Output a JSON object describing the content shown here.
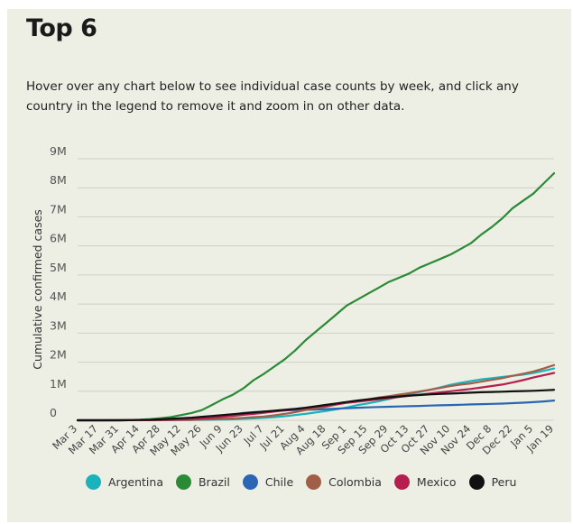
{
  "page": {
    "title": "Top 6",
    "intro": "Hover over any chart below to see individual case counts by week, and click any country in the legend to remove it and zoom in on other data.",
    "background": "#edeee4"
  },
  "chart_data": {
    "type": "line",
    "title": "",
    "xlabel": "",
    "ylabel": "Cumulative confirmed cases",
    "ylim": [
      0,
      9000000
    ],
    "y_ticks": [
      0,
      1000000,
      2000000,
      3000000,
      4000000,
      5000000,
      6000000,
      7000000,
      8000000,
      9000000
    ],
    "y_tick_labels": [
      "0",
      "1M",
      "2M",
      "3M",
      "4M",
      "5M",
      "6M",
      "7M",
      "8M",
      "9M"
    ],
    "x": [
      "Mar 3",
      "Mar 10",
      "Mar 17",
      "Mar 24",
      "Mar 31",
      "Apr 7",
      "Apr 14",
      "Apr 21",
      "Apr 28",
      "May 5",
      "May 12",
      "May 19",
      "May 26",
      "Jun 2",
      "Jun 9",
      "Jun 16",
      "Jun 23",
      "Jun 30",
      "Jul 7",
      "Jul 14",
      "Jul 21",
      "Jul 28",
      "Aug 4",
      "Aug 11",
      "Aug 18",
      "Aug 25",
      "Sep 1",
      "Sep 8",
      "Sep 15",
      "Sep 22",
      "Sep 29",
      "Oct 6",
      "Oct 13",
      "Oct 20",
      "Oct 27",
      "Nov 3",
      "Nov 10",
      "Nov 17",
      "Nov 24",
      "Dec 1",
      "Dec 8",
      "Dec 15",
      "Dec 22",
      "Dec 29",
      "Jan 5",
      "Jan 12",
      "Jan 19"
    ],
    "x_tick_labels": [
      "Mar 3",
      "Mar 17",
      "Mar 31",
      "Apr 14",
      "Apr 28",
      "May 12",
      "May 26",
      "Jun 9",
      "Jun 23",
      "Jul 7",
      "Jul 21",
      "Aug 4",
      "Aug 18",
      "Sep 1",
      "Sep 15",
      "Sep 29",
      "Oct 13",
      "Oct 27",
      "Nov 10",
      "Nov 24",
      "Dec 8",
      "Dec 22",
      "Jan 5",
      "Jan 19"
    ],
    "grid": true,
    "legend_position": "bottom",
    "series": [
      {
        "name": "Argentina",
        "color": "#1ab3bb",
        "values": [
          0,
          0,
          0,
          0,
          1000,
          2000,
          3000,
          3000,
          4000,
          5000,
          7000,
          9000,
          15000,
          20000,
          25000,
          35000,
          50000,
          65000,
          85000,
          110000,
          140000,
          180000,
          220000,
          270000,
          320000,
          380000,
          440000,
          520000,
          580000,
          650000,
          730000,
          810000,
          890000,
          970000,
          1050000,
          1130000,
          1220000,
          1290000,
          1350000,
          1410000,
          1450000,
          1490000,
          1530000,
          1570000,
          1630000,
          1700000,
          1780000
        ]
      },
      {
        "name": "Brazil",
        "color": "#2b8a35",
        "values": [
          0,
          0,
          0,
          3000,
          5000,
          10000,
          20000,
          40000,
          70000,
          110000,
          180000,
          250000,
          350000,
          530000,
          720000,
          880000,
          1100000,
          1380000,
          1600000,
          1850000,
          2100000,
          2400000,
          2750000,
          3050000,
          3350000,
          3650000,
          3950000,
          4150000,
          4350000,
          4550000,
          4750000,
          4900000,
          5050000,
          5250000,
          5400000,
          5550000,
          5700000,
          5900000,
          6100000,
          6400000,
          6650000,
          6950000,
          7300000,
          7550000,
          7800000,
          8150000,
          8500000
        ]
      },
      {
        "name": "Chile",
        "color": "#2a66b4",
        "values": [
          0,
          0,
          0,
          1000,
          2000,
          4000,
          7000,
          10000,
          13000,
          20000,
          30000,
          45000,
          70000,
          110000,
          150000,
          200000,
          250000,
          280000,
          300000,
          320000,
          340000,
          350000,
          360000,
          370000,
          385000,
          400000,
          415000,
          430000,
          445000,
          455000,
          465000,
          475000,
          485000,
          495000,
          505000,
          515000,
          525000,
          535000,
          545000,
          555000,
          565000,
          575000,
          590000,
          605000,
          625000,
          650000,
          680000
        ]
      },
      {
        "name": "Colombia",
        "color": "#a15f47",
        "values": [
          0,
          0,
          0,
          0,
          1000,
          2000,
          3000,
          4000,
          6000,
          9000,
          12000,
          17000,
          25000,
          35000,
          50000,
          65000,
          85000,
          110000,
          130000,
          170000,
          220000,
          280000,
          350000,
          410000,
          470000,
          540000,
          610000,
          670000,
          720000,
          780000,
          830000,
          880000,
          930000,
          990000,
          1050000,
          1110000,
          1180000,
          1230000,
          1270000,
          1330000,
          1390000,
          1450000,
          1530000,
          1600000,
          1680000,
          1780000,
          1900000
        ]
      },
      {
        "name": "Mexico",
        "color": "#b51e4f",
        "values": [
          0,
          0,
          0,
          0,
          1000,
          2000,
          3000,
          6000,
          10000,
          20000,
          30000,
          45000,
          65000,
          90000,
          120000,
          150000,
          190000,
          220000,
          260000,
          300000,
          340000,
          380000,
          420000,
          460000,
          500000,
          550000,
          600000,
          640000,
          680000,
          720000,
          760000,
          800000,
          840000,
          880000,
          920000,
          960000,
          1000000,
          1040000,
          1080000,
          1130000,
          1180000,
          1230000,
          1300000,
          1380000,
          1470000,
          1550000,
          1630000
        ]
      },
      {
        "name": "Peru",
        "color": "#111111",
        "values": [
          0,
          0,
          0,
          0,
          1000,
          3000,
          8000,
          15000,
          30000,
          50000,
          70000,
          90000,
          120000,
          150000,
          180000,
          210000,
          240000,
          270000,
          300000,
          330000,
          360000,
          390000,
          430000,
          480000,
          530000,
          580000,
          630000,
          680000,
          720000,
          760000,
          790000,
          820000,
          850000,
          870000,
          890000,
          905000,
          920000,
          935000,
          950000,
          965000,
          975000,
          985000,
          995000,
          1005000,
          1015000,
          1030000,
          1050000
        ]
      }
    ]
  }
}
